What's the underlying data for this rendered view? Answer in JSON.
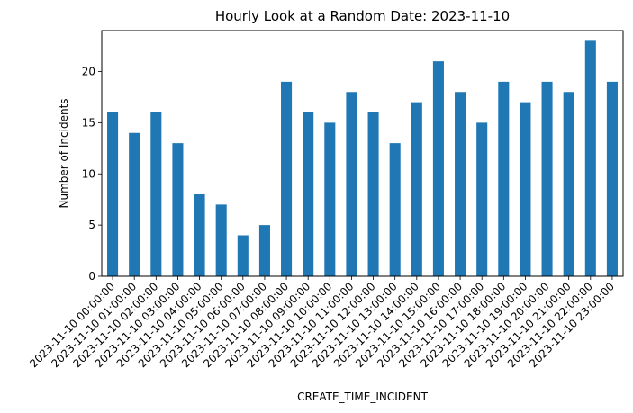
{
  "chart_data": {
    "type": "bar",
    "title": "Hourly Look at a Random Date: 2023-11-10",
    "xlabel": "CREATE_TIME_INCIDENT",
    "ylabel": "Number of Incidents",
    "categories": [
      "2023-11-10 00:00:00",
      "2023-11-10 01:00:00",
      "2023-11-10 02:00:00",
      "2023-11-10 03:00:00",
      "2023-11-10 04:00:00",
      "2023-11-10 05:00:00",
      "2023-11-10 06:00:00",
      "2023-11-10 07:00:00",
      "2023-11-10 08:00:00",
      "2023-11-10 09:00:00",
      "2023-11-10 10:00:00",
      "2023-11-10 11:00:00",
      "2023-11-10 12:00:00",
      "2023-11-10 13:00:00",
      "2023-11-10 14:00:00",
      "2023-11-10 15:00:00",
      "2023-11-10 16:00:00",
      "2023-11-10 17:00:00",
      "2023-11-10 18:00:00",
      "2023-11-10 19:00:00",
      "2023-11-10 20:00:00",
      "2023-11-10 21:00:00",
      "2023-11-10 22:00:00",
      "2023-11-10 23:00:00"
    ],
    "values": [
      16,
      14,
      16,
      13,
      8,
      7,
      4,
      5,
      19,
      16,
      15,
      18,
      16,
      13,
      17,
      21,
      18,
      15,
      19,
      17,
      19,
      18,
      23,
      19
    ],
    "ylim": [
      0,
      24
    ],
    "yticks": [
      0,
      5,
      10,
      15,
      20
    ],
    "bar_color": "#1f77b4",
    "grid": false,
    "legend": "none"
  }
}
